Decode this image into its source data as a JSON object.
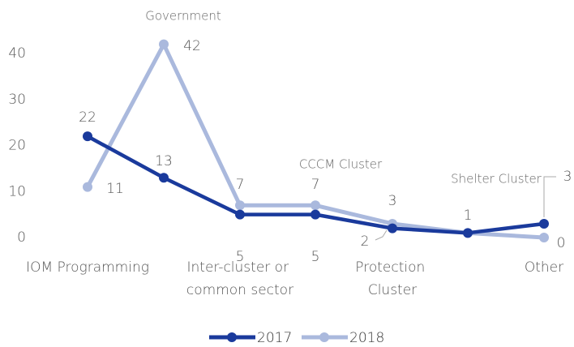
{
  "chart_data": {
    "type": "line",
    "categories": [
      "IOM Programming",
      "Government",
      "Inter-cluster or common sector",
      "CCCM Cluster",
      "Protection Cluster",
      "Shelter Cluster",
      "Other"
    ],
    "series": [
      {
        "name": "2017",
        "color": "#1a3a9c",
        "values": [
          22,
          13,
          5,
          5,
          2,
          1,
          3
        ]
      },
      {
        "name": "2018",
        "color": "#aab9dd",
        "values": [
          11,
          42,
          7,
          7,
          3,
          1,
          0
        ]
      }
    ],
    "ylim": [
      0,
      40
    ],
    "yticks": [
      0,
      10,
      20,
      30,
      40
    ],
    "grid": false,
    "legend": "bottom"
  }
}
